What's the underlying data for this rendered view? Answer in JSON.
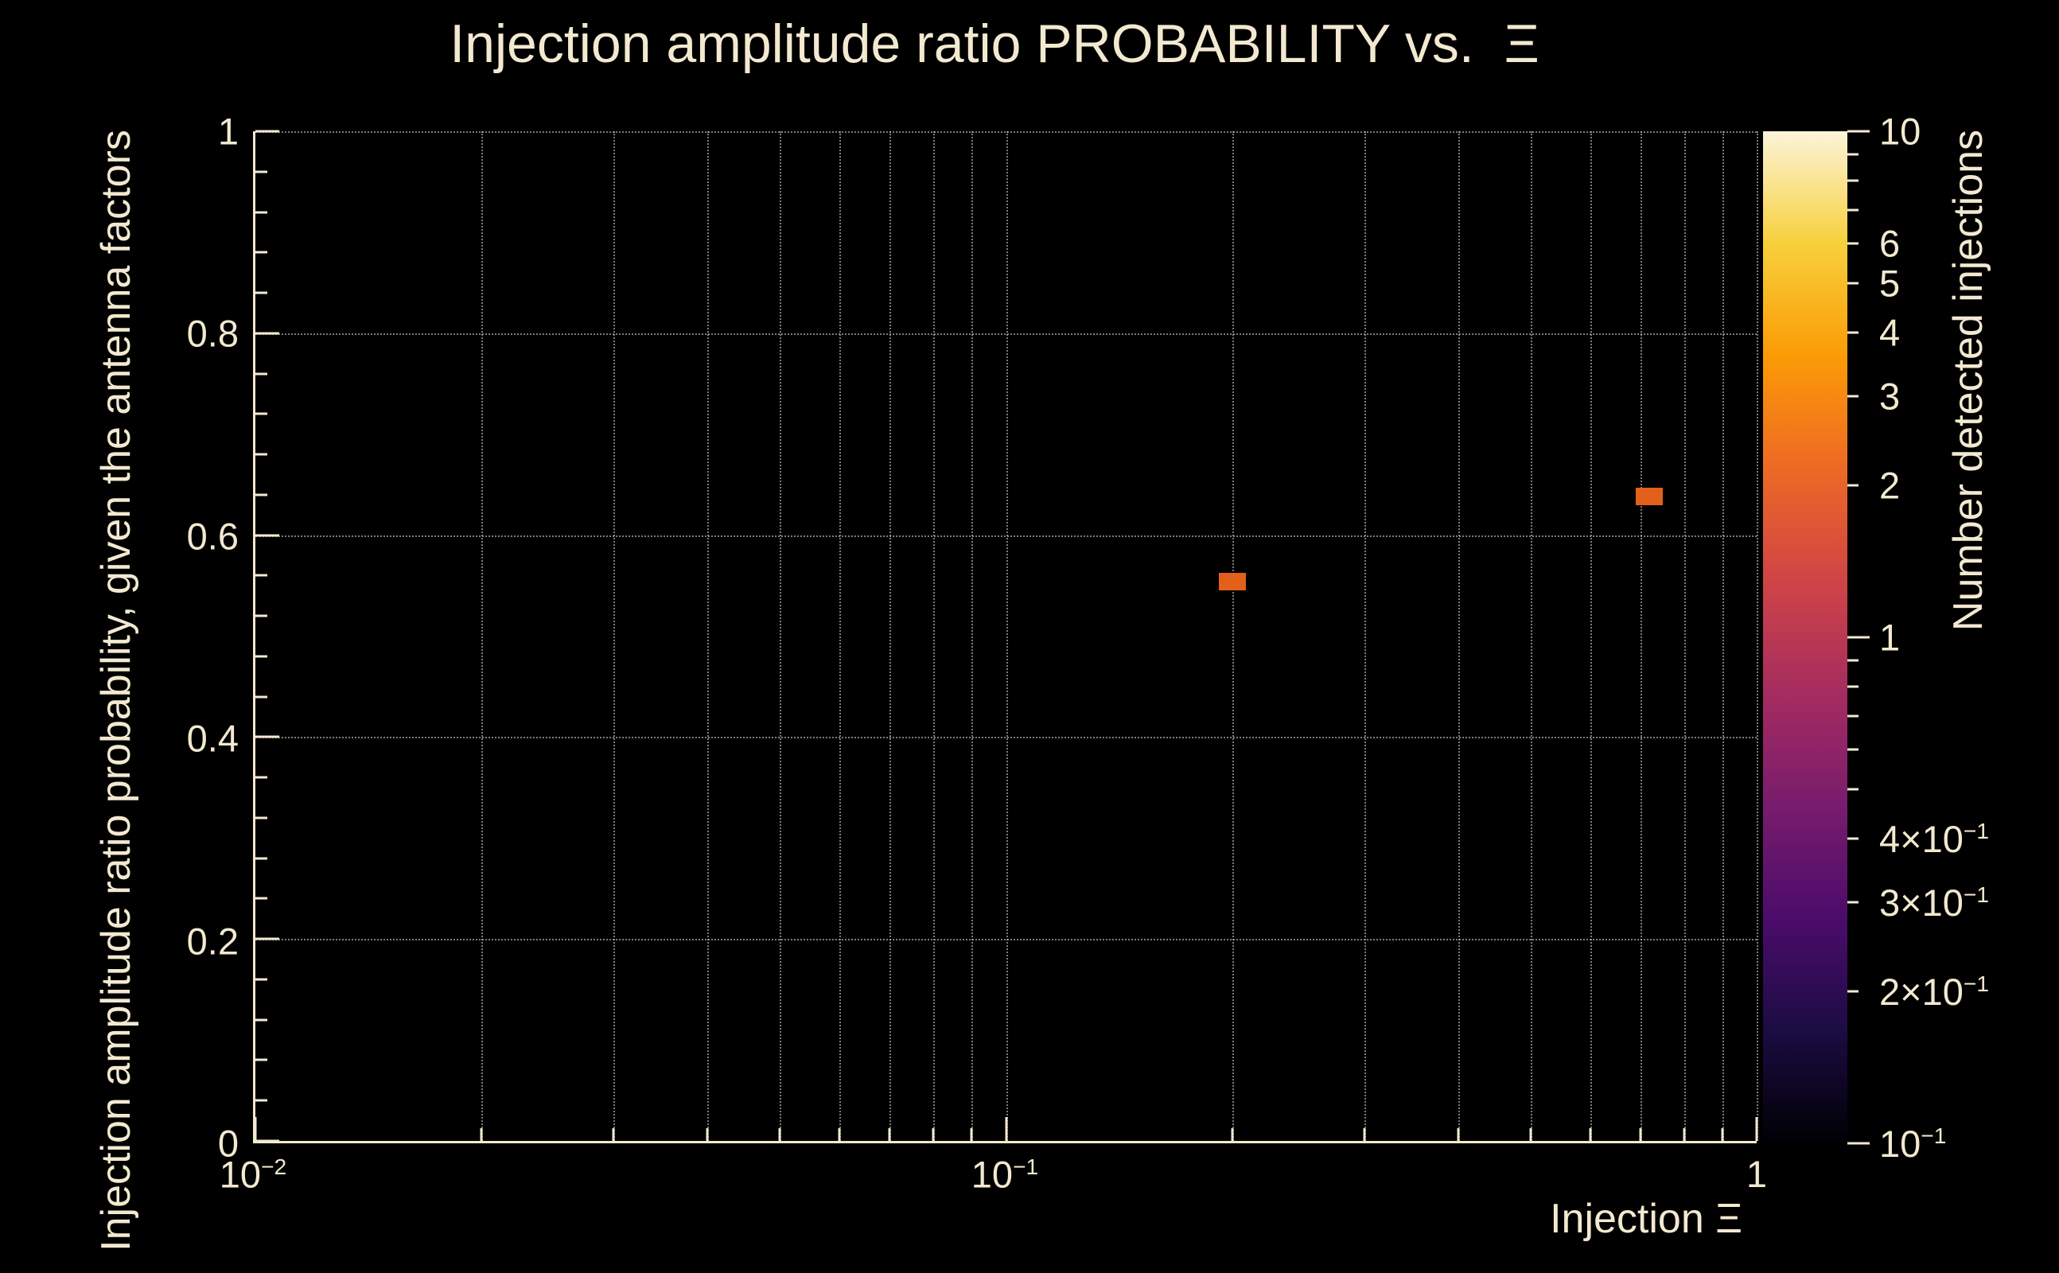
{
  "colors": {
    "background": "#000000",
    "text": "#f3e9d0",
    "grid": "#cdcdcd",
    "point": "#e2601a"
  },
  "chart_data": {
    "type": "scatter",
    "title": "Injection amplitude ratio PROBABILITY vs.  Ξ",
    "xlabel": "Injection Ξ",
    "ylabel": "Injection amplitude ratio probability, given the antenna factors",
    "x_scale": "log",
    "xlim": [
      0.01,
      1
    ],
    "y_scale": "linear",
    "ylim": [
      0,
      1
    ],
    "grid": true,
    "x_ticks": [
      {
        "label": "10",
        "exp": "−2",
        "value": 0.01
      },
      {
        "label": "10",
        "exp": "−1",
        "value": 0.1
      },
      {
        "label": "1",
        "exp": "",
        "value": 1
      }
    ],
    "y_ticks": [
      {
        "label": "0",
        "value": 0
      },
      {
        "label": "0.2",
        "value": 0.2
      },
      {
        "label": "0.4",
        "value": 0.4
      },
      {
        "label": "0.6",
        "value": 0.6
      },
      {
        "label": "0.8",
        "value": 0.8
      },
      {
        "label": "1",
        "value": 1
      }
    ],
    "points": [
      {
        "x": 0.2,
        "y": 0.554,
        "count": 1
      },
      {
        "x": 0.72,
        "y": 0.638,
        "count": 1
      }
    ],
    "point_color": "#e2601a",
    "colorbar": {
      "label": "Number detected injections",
      "scale": "log",
      "min": 0.1,
      "max": 10,
      "ticks": [
        {
          "label": "10",
          "exp": "",
          "value": 10
        },
        {
          "label": "6",
          "exp": "",
          "value": 6
        },
        {
          "label": "5",
          "exp": "",
          "value": 5
        },
        {
          "label": "4",
          "exp": "",
          "value": 4
        },
        {
          "label": "3",
          "exp": "",
          "value": 3
        },
        {
          "label": "2",
          "exp": "",
          "value": 2
        },
        {
          "label": "1",
          "exp": "",
          "value": 1
        },
        {
          "label": "4×10",
          "exp": "−1",
          "value": 0.4
        },
        {
          "label": "3×10",
          "exp": "−1",
          "value": 0.3
        },
        {
          "label": "2×10",
          "exp": "−1",
          "value": 0.2
        },
        {
          "label": "10",
          "exp": "−1",
          "value": 0.1
        }
      ],
      "minor_ticks": [
        9,
        8,
        7,
        0.9,
        0.8,
        0.7,
        0.6,
        0.5
      ],
      "colormap_stops": [
        "#000004",
        "#1b0c42",
        "#4b0c6b",
        "#781c6d",
        "#a52c60",
        "#cf4446",
        "#ed6925",
        "#fb9b06",
        "#f7d03c",
        "#fcf4d8"
      ]
    }
  }
}
